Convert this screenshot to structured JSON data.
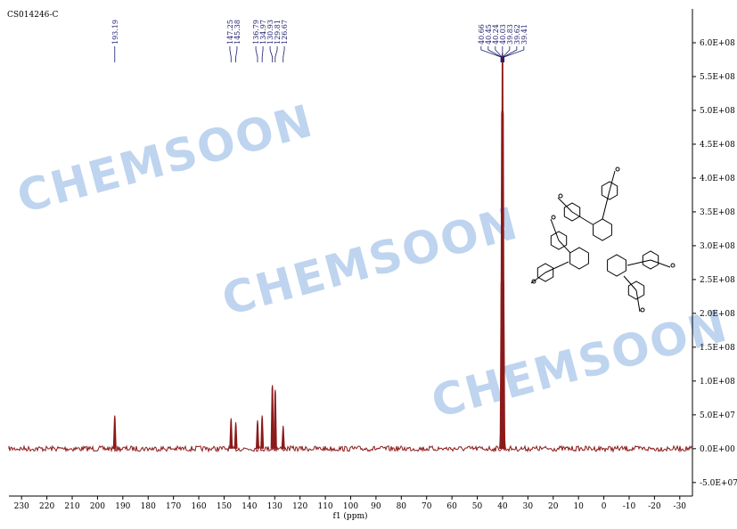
{
  "chart_data": {
    "type": "spectrum",
    "title": "CS014246-C",
    "x_label": "f1 (ppm)",
    "watermark": "CHEMSOON",
    "color": "#8b1a1a",
    "label_color": "#1a1a6e",
    "peaks": {
      "x": [
        193.19,
        147.25,
        145.38,
        136.79,
        134.97,
        130.93,
        129.81,
        126.67,
        40.66,
        40.45,
        40.24,
        40.03,
        39.83,
        39.62,
        39.41
      ],
      "labels": [
        "193.19",
        "147.25",
        "145.38",
        "136.79",
        "134.97",
        "130.93",
        "129.81",
        "126.67",
        "40.66",
        "40.45",
        "40.24",
        "40.03",
        "39.83",
        "39.62",
        "39.41"
      ],
      "values": [
        49000000,
        45000000,
        39000000,
        42000000,
        49000000,
        94000000,
        87000000,
        34000000,
        30000000,
        250000000,
        500000000,
        585000000,
        500000000,
        250000000,
        30000000
      ]
    },
    "xlim": [
      235,
      -35
    ],
    "xticks": [
      230,
      220,
      210,
      200,
      190,
      180,
      170,
      160,
      150,
      140,
      130,
      120,
      110,
      100,
      90,
      80,
      70,
      60,
      50,
      40,
      30,
      20,
      10,
      0,
      -10,
      -20,
      -30
    ],
    "ylim": [
      -70000000,
      650000000
    ],
    "yticks": [
      {
        "value": -50000000,
        "label": "-5.0E+07"
      },
      {
        "value": 0,
        "label": "0.0E+00"
      },
      {
        "value": 50000000,
        "label": "5.0E+07"
      },
      {
        "value": 100000000,
        "label": "1.0E+08"
      },
      {
        "value": 150000000,
        "label": "1.5E+08"
      },
      {
        "value": 200000000,
        "label": "2.0E+08"
      },
      {
        "value": 250000000,
        "label": "2.5E+08"
      },
      {
        "value": 300000000,
        "label": "3.0E+08"
      },
      {
        "value": 350000000,
        "label": "3.5E+08"
      },
      {
        "value": 400000000,
        "label": "4.0E+08"
      },
      {
        "value": 450000000,
        "label": "4.5E+08"
      },
      {
        "value": 500000000,
        "label": "5.0E+08"
      },
      {
        "value": 550000000,
        "label": "5.5E+08"
      },
      {
        "value": 600000000,
        "label": "6.0E+08"
      }
    ]
  }
}
